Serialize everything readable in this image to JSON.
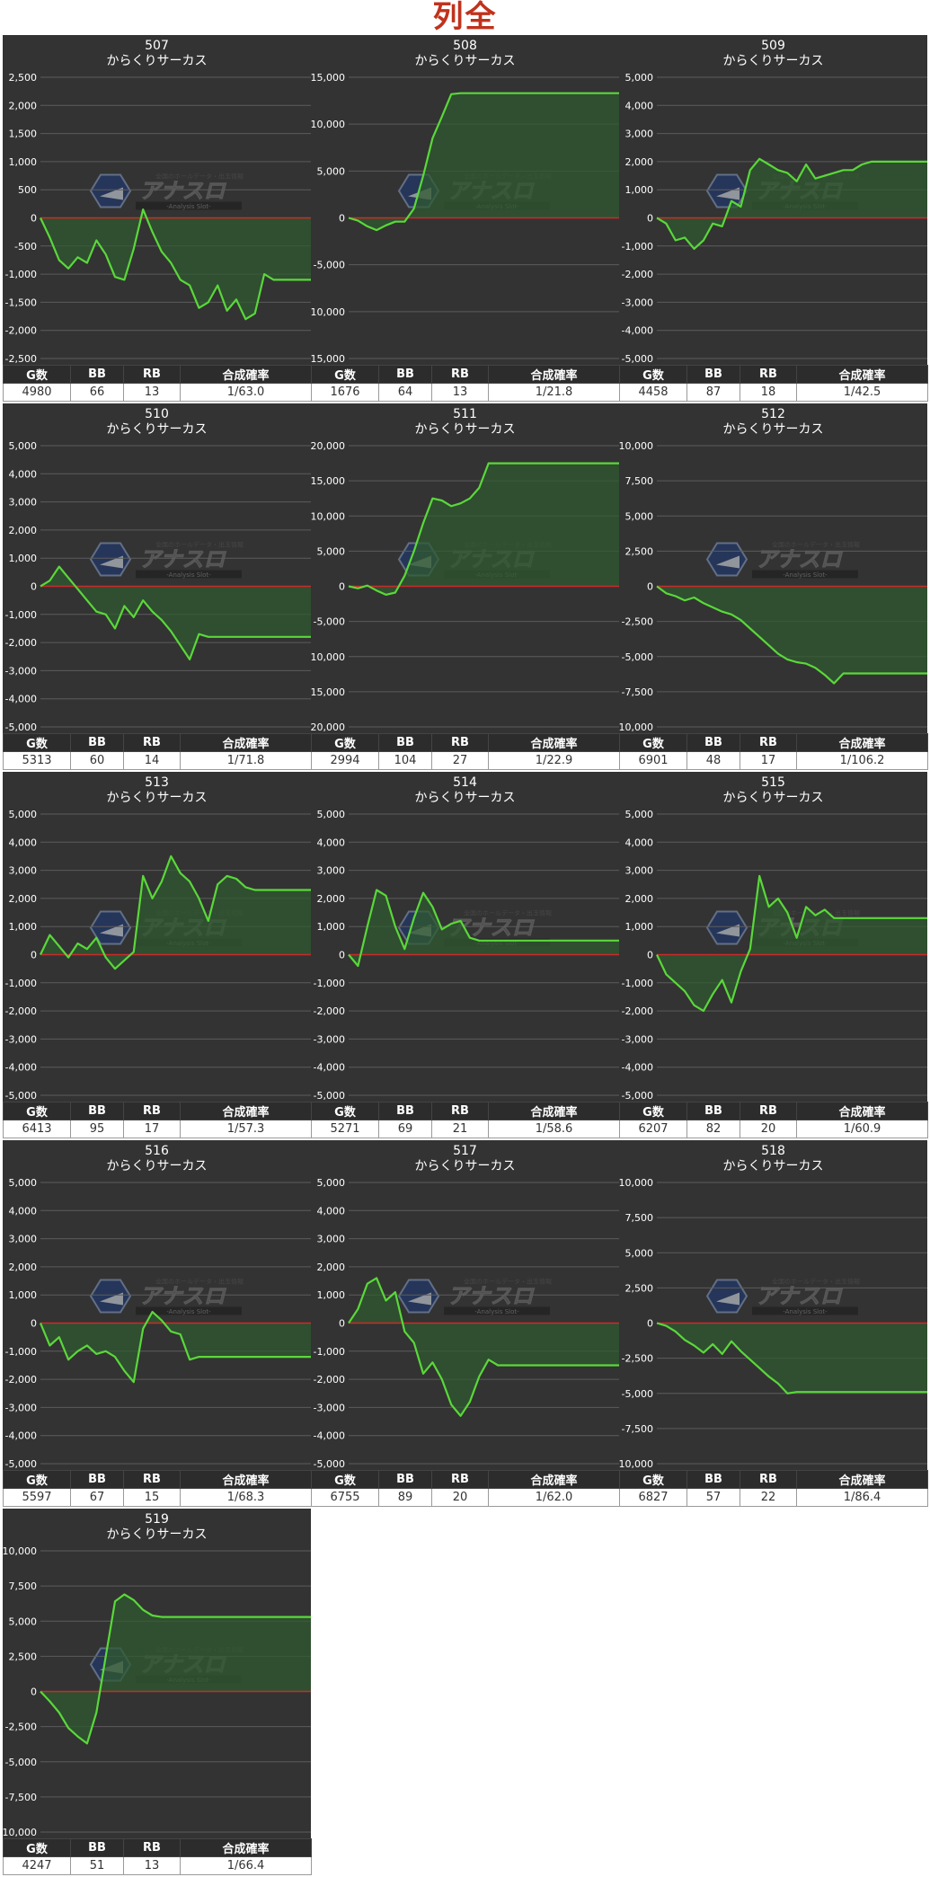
{
  "page_title": "列全",
  "stat_headers": [
    "G数",
    "BB",
    "RB",
    "合成確率"
  ],
  "colors": {
    "background": "#333333",
    "line": "#5ad83a",
    "fill": "#2f5a30",
    "zero_line": "#cc2a2a",
    "grid": "#5c5c5c",
    "tick_text": "#ffffff"
  },
  "watermark": {
    "title": "アナスロ",
    "subtitle": "-Analysis Slot-",
    "tag": "全国のホールデータ・出玉情報"
  },
  "chart_data": [
    {
      "type": "line",
      "title": "507",
      "subtitle": "からくりサーカス",
      "ylim": [
        -2500,
        2500
      ],
      "ticks": [
        "2,500",
        "2,000",
        "1,500",
        "1,000",
        "500",
        "0",
        "-500",
        "-1,000",
        "-1,500",
        "-2,000",
        "-2,500"
      ],
      "values": [
        0,
        -350,
        -750,
        -900,
        -700,
        -800,
        -400,
        -650,
        -1050,
        -1100,
        -550,
        150,
        -250,
        -600,
        -800,
        -1100,
        -1200,
        -1600,
        -1500,
        -1200,
        -1650,
        -1450,
        -1800,
        -1700,
        -1000,
        -1100,
        -1100,
        -1100,
        -1100,
        -1100
      ],
      "stats": {
        "g": "4980",
        "bb": "66",
        "rb": "13",
        "prob": "1/63.0"
      }
    },
    {
      "type": "line",
      "title": "508",
      "subtitle": "からくりサーカス",
      "ylim": [
        -15000,
        15000
      ],
      "ticks": [
        "15,000",
        "10,000",
        "5,000",
        "0",
        "-5,000",
        "-10,000",
        "-15,000"
      ],
      "values": [
        0,
        -300,
        -900,
        -1300,
        -800,
        -400,
        -400,
        1000,
        4500,
        8500,
        10800,
        13200,
        13300,
        13300,
        13300,
        13300,
        13300,
        13300,
        13300,
        13300,
        13300,
        13300,
        13300,
        13300,
        13300,
        13300,
        13300,
        13300,
        13300,
        13300
      ],
      "stats": {
        "g": "1676",
        "bb": "64",
        "rb": "13",
        "prob": "1/21.8"
      }
    },
    {
      "type": "line",
      "title": "509",
      "subtitle": "からくりサーカス",
      "ylim": [
        -5000,
        5000
      ],
      "ticks": [
        "5,000",
        "4,000",
        "3,000",
        "2,000",
        "1,000",
        "0",
        "-1,000",
        "-2,000",
        "-3,000",
        "-4,000",
        "-5,000"
      ],
      "values": [
        0,
        -200,
        -800,
        -700,
        -1100,
        -800,
        -200,
        -300,
        600,
        400,
        1700,
        2100,
        1900,
        1700,
        1600,
        1300,
        1900,
        1400,
        1500,
        1600,
        1700,
        1700,
        1900,
        2000,
        2000,
        2000,
        2000,
        2000,
        2000,
        2000
      ],
      "stats": {
        "g": "4458",
        "bb": "87",
        "rb": "18",
        "prob": "1/42.5"
      }
    },
    {
      "type": "line",
      "title": "510",
      "subtitle": "からくりサーカス",
      "ylim": [
        -5000,
        5000
      ],
      "ticks": [
        "5,000",
        "4,000",
        "3,000",
        "2,000",
        "1,000",
        "0",
        "-1,000",
        "-2,000",
        "-3,000",
        "-4,000",
        "-5,000"
      ],
      "values": [
        0,
        200,
        700,
        300,
        -100,
        -500,
        -900,
        -1000,
        -1500,
        -700,
        -1100,
        -500,
        -900,
        -1200,
        -1600,
        -2100,
        -2600,
        -1700,
        -1800,
        -1800,
        -1800,
        -1800,
        -1800,
        -1800,
        -1800,
        -1800,
        -1800,
        -1800,
        -1800,
        -1800
      ],
      "stats": {
        "g": "5313",
        "bb": "60",
        "rb": "14",
        "prob": "1/71.8"
      }
    },
    {
      "type": "line",
      "title": "511",
      "subtitle": "からくりサーカス",
      "ylim": [
        -20000,
        20000
      ],
      "ticks": [
        "20,000",
        "15,000",
        "10,000",
        "5,000",
        "0",
        "-5,000",
        "-10,000",
        "-15,000",
        "-20,000"
      ],
      "values": [
        0,
        -300,
        100,
        -600,
        -1200,
        -900,
        1500,
        5000,
        9000,
        12500,
        12200,
        11400,
        11800,
        12500,
        14000,
        17500,
        17500,
        17500,
        17500,
        17500,
        17500,
        17500,
        17500,
        17500,
        17500,
        17500,
        17500,
        17500,
        17500,
        17500
      ],
      "stats": {
        "g": "2994",
        "bb": "104",
        "rb": "27",
        "prob": "1/22.9"
      }
    },
    {
      "type": "line",
      "title": "512",
      "subtitle": "からくりサーカス",
      "ylim": [
        -10000,
        10000
      ],
      "ticks": [
        "10,000",
        "7,500",
        "5,000",
        "2,500",
        "0",
        "-2,500",
        "-5,000",
        "-7,500",
        "-10,000"
      ],
      "values": [
        0,
        -500,
        -700,
        -1000,
        -800,
        -1200,
        -1500,
        -1800,
        -2000,
        -2400,
        -3000,
        -3600,
        -4200,
        -4800,
        -5200,
        -5400,
        -5500,
        -5800,
        -6300,
        -6900,
        -6200,
        -6200,
        -6200,
        -6200,
        -6200,
        -6200,
        -6200,
        -6200,
        -6200,
        -6200
      ],
      "stats": {
        "g": "6901",
        "bb": "48",
        "rb": "17",
        "prob": "1/106.2"
      }
    },
    {
      "type": "line",
      "title": "513",
      "subtitle": "からくりサーカス",
      "ylim": [
        -5000,
        5000
      ],
      "ticks": [
        "5,000",
        "4,000",
        "3,000",
        "2,000",
        "1,000",
        "0",
        "-1,000",
        "-2,000",
        "-3,000",
        "-4,000",
        "-5,000"
      ],
      "values": [
        0,
        700,
        300,
        -100,
        400,
        200,
        600,
        -100,
        -500,
        -200,
        100,
        2800,
        2000,
        2600,
        3500,
        2900,
        2600,
        2000,
        1200,
        2500,
        2800,
        2700,
        2400,
        2300,
        2300,
        2300,
        2300,
        2300,
        2300,
        2300
      ],
      "stats": {
        "g": "6413",
        "bb": "95",
        "rb": "17",
        "prob": "1/57.3"
      }
    },
    {
      "type": "line",
      "title": "514",
      "subtitle": "からくりサーカス",
      "ylim": [
        -5000,
        5000
      ],
      "ticks": [
        "5,000",
        "4,000",
        "3,000",
        "2,000",
        "1,000",
        "0",
        "-1,000",
        "-2,000",
        "-3,000",
        "-4,000",
        "-5,000"
      ],
      "values": [
        0,
        -400,
        1000,
        2300,
        2100,
        1000,
        200,
        1300,
        2200,
        1700,
        900,
        1100,
        1200,
        600,
        500,
        500,
        500,
        500,
        500,
        500,
        500,
        500,
        500,
        500,
        500,
        500,
        500,
        500,
        500,
        500
      ],
      "stats": {
        "g": "5271",
        "bb": "69",
        "rb": "21",
        "prob": "1/58.6"
      }
    },
    {
      "type": "line",
      "title": "515",
      "subtitle": "からくりサーカス",
      "ylim": [
        -5000,
        5000
      ],
      "ticks": [
        "5,000",
        "4,000",
        "3,000",
        "2,000",
        "1,000",
        "0",
        "-1,000",
        "-2,000",
        "-3,000",
        "-4,000",
        "-5,000"
      ],
      "values": [
        0,
        -700,
        -1000,
        -1300,
        -1800,
        -2000,
        -1400,
        -900,
        -1700,
        -600,
        200,
        2800,
        1700,
        2000,
        1500,
        600,
        1700,
        1400,
        1600,
        1300,
        1300,
        1300,
        1300,
        1300,
        1300,
        1300,
        1300,
        1300,
        1300,
        1300
      ],
      "stats": {
        "g": "6207",
        "bb": "82",
        "rb": "20",
        "prob": "1/60.9"
      }
    },
    {
      "type": "line",
      "title": "516",
      "subtitle": "からくりサーカス",
      "ylim": [
        -5000,
        5000
      ],
      "ticks": [
        "5,000",
        "4,000",
        "3,000",
        "2,000",
        "1,000",
        "0",
        "-1,000",
        "-2,000",
        "-3,000",
        "-4,000",
        "-5,000"
      ],
      "values": [
        0,
        -800,
        -500,
        -1300,
        -1000,
        -800,
        -1100,
        -1000,
        -1200,
        -1700,
        -2100,
        -200,
        400,
        100,
        -300,
        -400,
        -1300,
        -1200,
        -1200,
        -1200,
        -1200,
        -1200,
        -1200,
        -1200,
        -1200,
        -1200,
        -1200,
        -1200,
        -1200,
        -1200
      ],
      "stats": {
        "g": "5597",
        "bb": "67",
        "rb": "15",
        "prob": "1/68.3"
      }
    },
    {
      "type": "line",
      "title": "517",
      "subtitle": "からくりサーカス",
      "ylim": [
        -5000,
        5000
      ],
      "ticks": [
        "5,000",
        "4,000",
        "3,000",
        "2,000",
        "1,000",
        "0",
        "-1,000",
        "-2,000",
        "-3,000",
        "-4,000",
        "-5,000"
      ],
      "values": [
        0,
        500,
        1400,
        1600,
        800,
        1100,
        -300,
        -700,
        -1800,
        -1400,
        -2000,
        -2900,
        -3300,
        -2800,
        -1900,
        -1300,
        -1500,
        -1500,
        -1500,
        -1500,
        -1500,
        -1500,
        -1500,
        -1500,
        -1500,
        -1500,
        -1500,
        -1500,
        -1500,
        -1500
      ],
      "stats": {
        "g": "6755",
        "bb": "89",
        "rb": "20",
        "prob": "1/62.0"
      }
    },
    {
      "type": "line",
      "title": "518",
      "subtitle": "からくりサーカス",
      "ylim": [
        -10000,
        10000
      ],
      "ticks": [
        "10,000",
        "7,500",
        "5,000",
        "2,500",
        "0",
        "-2,500",
        "-5,000",
        "-7,500",
        "-10,000"
      ],
      "values": [
        0,
        -200,
        -600,
        -1200,
        -1600,
        -2100,
        -1500,
        -2200,
        -1300,
        -2000,
        -2600,
        -3200,
        -3800,
        -4300,
        -5000,
        -4900,
        -4900,
        -4900,
        -4900,
        -4900,
        -4900,
        -4900,
        -4900,
        -4900,
        -4900,
        -4900,
        -4900,
        -4900,
        -4900,
        -4900
      ],
      "stats": {
        "g": "6827",
        "bb": "57",
        "rb": "22",
        "prob": "1/86.4"
      }
    },
    {
      "type": "line",
      "title": "519",
      "subtitle": "からくりサーカス",
      "ylim": [
        -10000,
        10000
      ],
      "ticks": [
        "10,000",
        "7,500",
        "5,000",
        "2,500",
        "0",
        "-2,500",
        "-5,000",
        "-7,500",
        "-10,000"
      ],
      "values": [
        0,
        -700,
        -1500,
        -2600,
        -3200,
        -3700,
        -1500,
        2500,
        6400,
        6900,
        6500,
        5800,
        5400,
        5300,
        5300,
        5300,
        5300,
        5300,
        5300,
        5300,
        5300,
        5300,
        5300,
        5300,
        5300,
        5300,
        5300,
        5300,
        5300,
        5300
      ],
      "stats": {
        "g": "4247",
        "bb": "51",
        "rb": "13",
        "prob": "1/66.4"
      }
    }
  ]
}
